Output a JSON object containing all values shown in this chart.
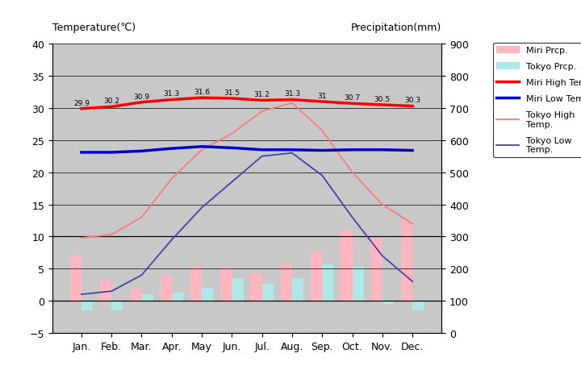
{
  "months": [
    "Jan.",
    "Feb.",
    "Mar.",
    "Apr.",
    "May",
    "Jun.",
    "Jul.",
    "Aug.",
    "Sep.",
    "Oct.",
    "Nov.",
    "Dec."
  ],
  "miri_high": [
    29.9,
    30.2,
    30.9,
    31.3,
    31.6,
    31.5,
    31.2,
    31.3,
    31.0,
    30.7,
    30.5,
    30.3
  ],
  "miri_low": [
    23.1,
    23.1,
    23.3,
    23.7,
    24.0,
    23.8,
    23.5,
    23.5,
    23.4,
    23.5,
    23.5,
    23.4
  ],
  "tokyo_high": [
    9.8,
    10.3,
    13.0,
    19.0,
    23.5,
    26.0,
    29.5,
    30.8,
    26.5,
    20.0,
    15.0,
    12.0
  ],
  "tokyo_low": [
    1.0,
    1.5,
    4.0,
    9.5,
    14.5,
    18.5,
    22.5,
    23.0,
    19.5,
    13.0,
    7.0,
    3.0
  ],
  "miri_prcp_bars": [
    7.0,
    3.2,
    2.0,
    4.0,
    5.2,
    5.2,
    4.2,
    5.7,
    7.7,
    11.0,
    9.7,
    12.5
  ],
  "tokyo_prcp_bars": [
    -1.5,
    -1.5,
    1.0,
    1.3,
    2.0,
    3.5,
    2.7,
    3.5,
    5.7,
    5.3,
    -0.5,
    -1.5
  ],
  "miri_high_labels": [
    "29.9",
    "30.2",
    "30.9",
    "31.3",
    "31.6",
    "31.5",
    "31.2",
    "31.3",
    "31",
    "30.7",
    "30.5",
    "30.3"
  ],
  "miri_prcp_color": "#FFB6C1",
  "tokyo_prcp_color": "#B0E8E8",
  "miri_high_color": "#FF0000",
  "miri_low_color": "#0000CC",
  "tokyo_high_color": "#FF7777",
  "tokyo_low_color": "#4444AA",
  "bg_color": "#C8C8C8",
  "temp_ylim": [
    -5,
    40
  ],
  "prcp_ylim": [
    0,
    900
  ],
  "temp_yticks": [
    -5,
    0,
    5,
    10,
    15,
    20,
    25,
    30,
    35,
    40
  ],
  "prcp_yticks": [
    0,
    100,
    200,
    300,
    400,
    500,
    600,
    700,
    800,
    900
  ],
  "temp_scale_min": -5,
  "temp_scale_max": 40,
  "prcp_scale_min": 0,
  "prcp_scale_max": 900,
  "title_left": "Temperature(℃)",
  "title_right": "Precipitation(mm)"
}
